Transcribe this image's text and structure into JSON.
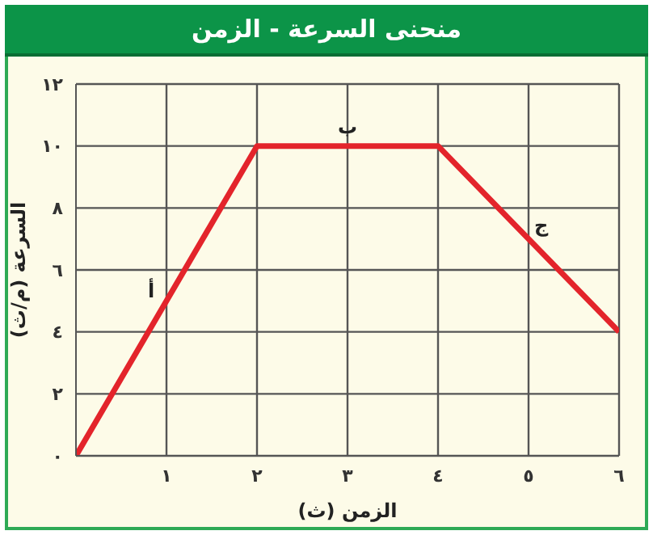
{
  "chart_data": {
    "type": "line",
    "title": "منحنى السرعة - الزمن",
    "xlabel": "الزمن (ث)",
    "ylabel": "السرعة (م/ث)",
    "x": [
      0,
      2,
      4,
      6
    ],
    "series": [
      {
        "color": "#e3242b",
        "values": [
          0,
          10,
          10,
          4
        ]
      }
    ],
    "xlim": [
      0,
      6
    ],
    "xticks": [
      {
        "value": 1,
        "label": "١"
      },
      {
        "value": 2,
        "label": "٢"
      },
      {
        "value": 3,
        "label": "٣"
      },
      {
        "value": 4,
        "label": "٤"
      },
      {
        "value": 5,
        "label": "٥"
      },
      {
        "value": 6,
        "label": "٦"
      }
    ],
    "ylim": [
      0,
      12
    ],
    "yticks": [
      {
        "value": 0,
        "label": "٠"
      },
      {
        "value": 2,
        "label": "٢"
      },
      {
        "value": 4,
        "label": "٤"
      },
      {
        "value": 6,
        "label": "٦"
      },
      {
        "value": 8,
        "label": "٨"
      },
      {
        "value": 10,
        "label": "١٠"
      },
      {
        "value": 12,
        "label": "١٢"
      }
    ],
    "grid": true,
    "marker": "none",
    "line_style": "solid",
    "legend": false,
    "annotations": [
      "أ",
      "ب",
      "ج"
    ]
  }
}
